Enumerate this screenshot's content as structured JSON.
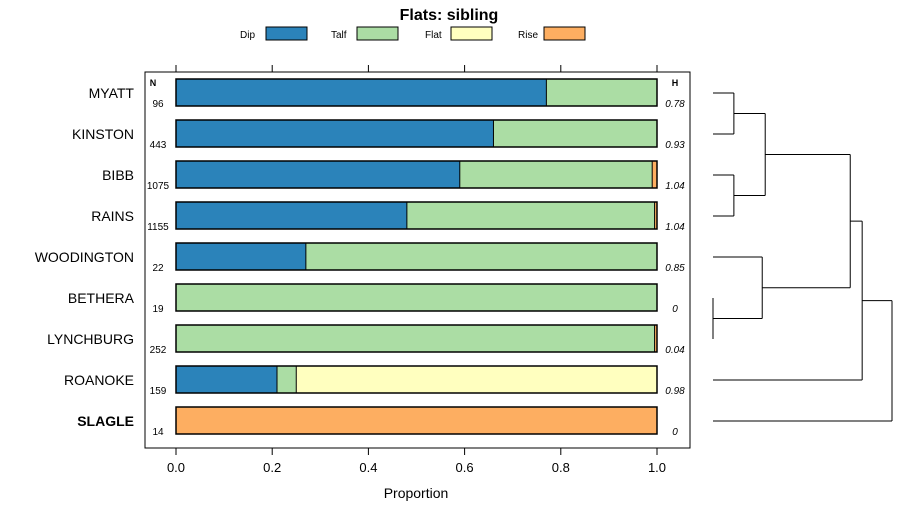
{
  "chart_data": {
    "type": "bar",
    "orientation": "horizontal",
    "stacked": true,
    "title": "Flats: sibling",
    "xlabel": "Proportion",
    "ylabel": "",
    "xlim": [
      0,
      1
    ],
    "xticks": [
      "0.0",
      "0.2",
      "0.4",
      "0.6",
      "0.8",
      "1.0"
    ],
    "legend_position": "top",
    "n_header": "N",
    "h_header": "H",
    "categories": [
      "MYATT",
      "KINSTON",
      "BIBB",
      "RAINS",
      "WOODINGTON",
      "BETHERA",
      "LYNCHBURG",
      "ROANOKE",
      "SLAGLE"
    ],
    "highlight_category": "SLAGLE",
    "n": [
      "96",
      "443",
      "1075",
      "1155",
      "22",
      "19",
      "252",
      "159",
      "14"
    ],
    "h": [
      "0.78",
      "0.93",
      "1.04",
      "1.04",
      "0.85",
      "0",
      "0.04",
      "0.98",
      "0"
    ],
    "series": [
      {
        "name": "Dip",
        "color": "#2b83ba",
        "values": [
          0.77,
          0.66,
          0.59,
          0.48,
          0.27,
          0.0,
          0.0,
          0.21,
          0.0
        ]
      },
      {
        "name": "Talf",
        "color": "#abdda4",
        "values": [
          0.23,
          0.34,
          0.4,
          0.515,
          0.73,
          1.0,
          0.995,
          0.04,
          0.0
        ]
      },
      {
        "name": "Flat",
        "color": "#ffffbf",
        "values": [
          0.0,
          0.0,
          0.0,
          0.0,
          0.0,
          0.0,
          0.0,
          0.75,
          0.0
        ]
      },
      {
        "name": "Rise",
        "color": "#fdae61",
        "values": [
          0.0,
          0.0,
          0.01,
          0.005,
          0.0,
          0.0,
          0.005,
          0.0,
          1.0
        ]
      }
    ],
    "dendrogram": {
      "leaf_order": [
        "MYATT",
        "KINSTON",
        "BIBB",
        "RAINS",
        "WOODINGTON",
        "BETHERA",
        "LYNCHBURG",
        "ROANOKE",
        "SLAGLE"
      ],
      "merges": [
        {
          "left": "BETHERA",
          "right": "LYNCHBURG",
          "height": 0.0
        },
        {
          "left": "MYATT",
          "right": "KINSTON",
          "height": 0.14
        },
        {
          "left": "BIBB",
          "right": "RAINS",
          "height": 0.14
        },
        {
          "left": "WOODINGTON",
          "right": "BETHERA+LYNCHBURG",
          "height": 0.33
        },
        {
          "left": "MYATT+KINSTON",
          "right": "BIBB+RAINS",
          "height": 0.35
        },
        {
          "left": "MYATT..RAINS",
          "right": "WOODINGTON..LYNCHBURG",
          "height": 0.92
        },
        {
          "left": "MYATT..LYNCHBURG",
          "right": "ROANOKE",
          "height": 1.0
        },
        {
          "left": "MYATT..ROANOKE",
          "right": "SLAGLE",
          "height": 1.2
        }
      ],
      "max_height": 1.2
    }
  }
}
